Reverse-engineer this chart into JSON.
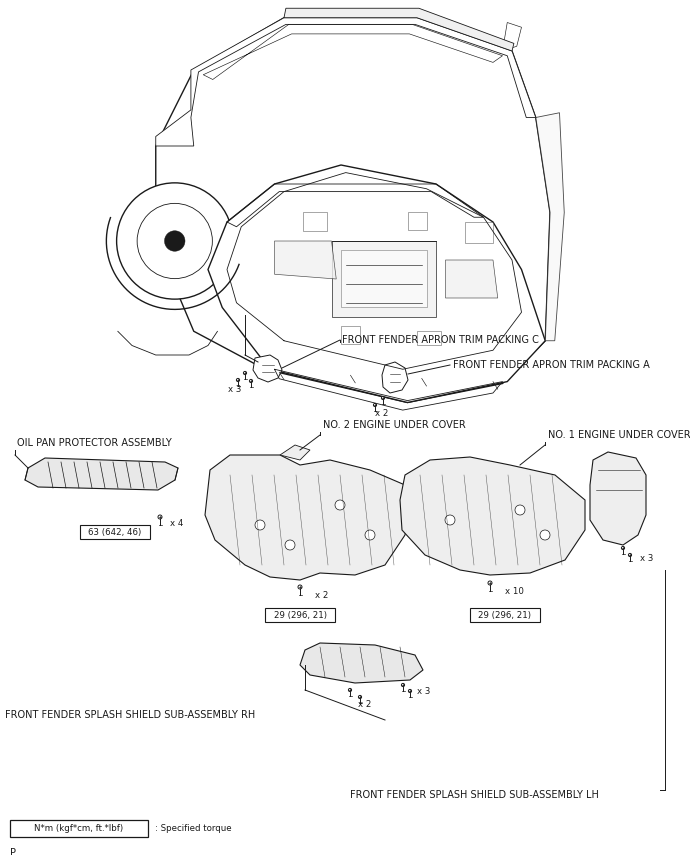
{
  "bg_color": "#ffffff",
  "line_color": "#1a1a1a",
  "text_color": "#1a1a1a",
  "fs_label": 7.0,
  "fs_small": 6.2,
  "fs_tiny": 5.5,
  "labels": {
    "packing_c": "FRONT FENDER APRON TRIM PACKING C",
    "packing_a": "FRONT FENDER APRON TRIM PACKING A",
    "oil_pan": "OIL PAN PROTECTOR ASSEMBLY",
    "cover2": "NO. 2 ENGINE UNDER COVER",
    "cover1": "NO. 1 ENGINE UNDER COVER",
    "splash_rh": "FRONT FENDER SPLASH SHIELD SUB-ASSEMBLY RH",
    "splash_lh": "FRONT FENDER SPLASH SHIELD SUB-ASSEMBLY LH",
    "torque_box": "N*m (kgf*cm, ft.*lbf)",
    "torque_label": ": Specified torque",
    "torque1": "63 (642, 46)",
    "torque2": "29 (296, 21)",
    "torque3": "29 (296, 21)",
    "x4": "x 4",
    "x2a": "x 2",
    "x2b": "x 2",
    "x10": "x 10",
    "x3a": "x 3",
    "x3b": "x 3",
    "x3c": "x 3",
    "page": "P"
  }
}
